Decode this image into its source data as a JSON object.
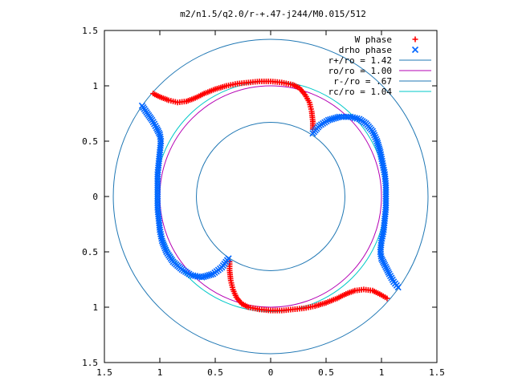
{
  "chart_data": {
    "type": "scatter",
    "title": "m2/n1.5/q2.0/r-+.47-j244/M0.015/512",
    "xlim": [
      -1.5,
      1.5
    ],
    "ylim": [
      -1.5,
      1.5
    ],
    "x_ticks": [
      -1.5,
      -1,
      -0.5,
      0,
      0.5,
      1,
      1.5
    ],
    "y_ticks": [
      -1.5,
      -1,
      -0.5,
      0,
      0.5,
      1,
      1.5
    ],
    "x_tick_labels": [
      "1.5",
      "1",
      "0.5",
      "0",
      "0.5",
      "1",
      "1.5"
    ],
    "y_tick_labels": [
      "1.5",
      "1",
      "0.5",
      "0",
      "0.5",
      "1",
      "1.5"
    ],
    "grid": false,
    "legend_position": "top-right",
    "series": [
      {
        "name": "W phase",
        "marker": "plus",
        "color": "#ff0000",
        "segments": [
          [
            [
              -1.06,
              0.93
            ],
            [
              -1.0,
              0.9
            ],
            [
              -0.92,
              0.87
            ],
            [
              -0.84,
              0.85
            ],
            [
              -0.76,
              0.86
            ],
            [
              -0.68,
              0.89
            ],
            [
              -0.6,
              0.93
            ],
            [
              -0.5,
              0.97
            ],
            [
              -0.4,
              1.0
            ],
            [
              -0.3,
              1.02
            ],
            [
              -0.2,
              1.03
            ],
            [
              -0.1,
              1.04
            ],
            [
              0.0,
              1.04
            ],
            [
              0.1,
              1.03
            ],
            [
              0.2,
              1.01
            ],
            [
              0.26,
              0.98
            ],
            [
              0.31,
              0.92
            ],
            [
              0.35,
              0.85
            ],
            [
              0.37,
              0.77
            ],
            [
              0.38,
              0.68
            ],
            [
              0.38,
              0.61
            ]
          ],
          [
            [
              1.05,
              -0.92
            ],
            [
              1.0,
              -0.89
            ],
            [
              0.92,
              -0.85
            ],
            [
              0.84,
              -0.84
            ],
            [
              0.76,
              -0.85
            ],
            [
              0.68,
              -0.88
            ],
            [
              0.6,
              -0.92
            ],
            [
              0.5,
              -0.96
            ],
            [
              0.4,
              -0.99
            ],
            [
              0.3,
              -1.01
            ],
            [
              0.2,
              -1.02
            ],
            [
              0.1,
              -1.03
            ],
            [
              0.0,
              -1.03
            ],
            [
              -0.1,
              -1.02
            ],
            [
              -0.2,
              -1.0
            ],
            [
              -0.26,
              -0.97
            ],
            [
              -0.31,
              -0.91
            ],
            [
              -0.34,
              -0.84
            ],
            [
              -0.36,
              -0.76
            ],
            [
              -0.37,
              -0.67
            ],
            [
              -0.37,
              -0.59
            ]
          ]
        ]
      },
      {
        "name": "drho phase",
        "marker": "cross",
        "color": "#0066ff",
        "segments": [
          [
            [
              0.38,
              0.57
            ],
            [
              0.44,
              0.64
            ],
            [
              0.52,
              0.69
            ],
            [
              0.62,
              0.72
            ],
            [
              0.72,
              0.72
            ],
            [
              0.8,
              0.7
            ],
            [
              0.86,
              0.66
            ],
            [
              0.92,
              0.59
            ],
            [
              0.96,
              0.5
            ],
            [
              0.99,
              0.4
            ],
            [
              1.01,
              0.3
            ],
            [
              1.03,
              0.2
            ],
            [
              1.04,
              0.1
            ],
            [
              1.04,
              0.0
            ],
            [
              1.04,
              -0.1
            ],
            [
              1.03,
              -0.2
            ],
            [
              1.02,
              -0.3
            ],
            [
              1.0,
              -0.4
            ],
            [
              0.99,
              -0.5
            ],
            [
              1.0,
              -0.56
            ],
            [
              1.03,
              -0.62
            ],
            [
              1.07,
              -0.7
            ],
            [
              1.11,
              -0.77
            ],
            [
              1.15,
              -0.82
            ]
          ],
          [
            [
              -1.16,
              0.82
            ],
            [
              -1.12,
              0.76
            ],
            [
              -1.07,
              0.69
            ],
            [
              -1.03,
              0.62
            ],
            [
              -1.0,
              0.56
            ],
            [
              -0.99,
              0.5
            ],
            [
              -1.0,
              0.4
            ],
            [
              -1.01,
              0.3
            ],
            [
              -1.02,
              0.2
            ],
            [
              -1.02,
              0.1
            ],
            [
              -1.02,
              0.0
            ],
            [
              -1.02,
              -0.1
            ],
            [
              -1.01,
              -0.2
            ],
            [
              -1.0,
              -0.3
            ],
            [
              -0.98,
              -0.4
            ],
            [
              -0.94,
              -0.5
            ],
            [
              -0.88,
              -0.59
            ],
            [
              -0.8,
              -0.66
            ],
            [
              -0.72,
              -0.71
            ],
            [
              -0.62,
              -0.73
            ],
            [
              -0.52,
              -0.7
            ],
            [
              -0.44,
              -0.64
            ],
            [
              -0.38,
              -0.56
            ]
          ]
        ]
      },
      {
        "name": "r+/ro = 1.42",
        "type": "circle",
        "radius": 1.42,
        "color": "#1f77b4"
      },
      {
        "name": "ro/ro = 1.00",
        "type": "circle",
        "radius": 1.0,
        "color": "#b400b4"
      },
      {
        "name": "r-/ro = .67",
        "type": "circle",
        "radius": 0.67,
        "color": "#1f77b4"
      },
      {
        "name": "rc/ro = 1.04",
        "type": "circle",
        "radius": 1.04,
        "color": "#00c8c8"
      }
    ]
  }
}
